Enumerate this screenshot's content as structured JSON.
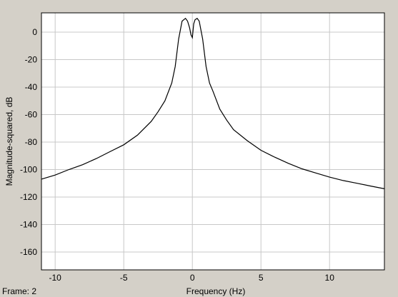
{
  "frame_label": "Frame: 2",
  "chart_data": {
    "type": "line",
    "title": "",
    "xlabel": "Frequency (Hz)",
    "ylabel": "Magnitude-squared, dB",
    "xlim": [
      -11,
      14
    ],
    "ylim": [
      -173,
      14
    ],
    "x_ticks": [
      -10,
      -5,
      0,
      5,
      10
    ],
    "x_tick_labels": [
      "-10",
      "-5",
      "0",
      "5",
      "10"
    ],
    "y_ticks": [
      0,
      -20,
      -40,
      -60,
      -80,
      -100,
      -120,
      -140,
      -160
    ],
    "y_tick_labels": [
      "0",
      "-20",
      "-40",
      "-60",
      "-80",
      "-100",
      "-120",
      "-140",
      "-160"
    ],
    "grid": true,
    "colors": {
      "line": "#000000",
      "grid": "#c8c8c8",
      "plot_bg": "#ffffff",
      "figure_bg": "#d4d0c8"
    },
    "series": [
      {
        "x": [
          -11,
          -10,
          -9,
          -8,
          -7,
          -6,
          -5,
          -4,
          -3,
          -2.5,
          -2,
          -1.5,
          -1.25,
          -1,
          -0.75,
          -0.5,
          -0.35,
          -0.2,
          -0.1,
          0,
          0.1,
          0.2,
          0.35,
          0.5,
          0.75,
          1,
          1.25,
          1.5,
          2,
          2.5,
          3,
          4,
          5,
          6,
          7,
          8,
          9,
          10,
          11,
          12,
          13,
          14
        ],
        "y": [
          -107,
          -104,
          -100,
          -96.5,
          -92,
          -87,
          -82,
          -75,
          -65,
          -58,
          -50,
          -37,
          -25,
          -5,
          8,
          10,
          8,
          3,
          -2,
          -4,
          6,
          9,
          10,
          8,
          -5,
          -25,
          -37,
          -43,
          -56,
          -64,
          -71,
          -79,
          -86,
          -91,
          -95.5,
          -99.5,
          -102.5,
          -105.5,
          -108,
          -110,
          -112,
          -114
        ]
      }
    ]
  }
}
